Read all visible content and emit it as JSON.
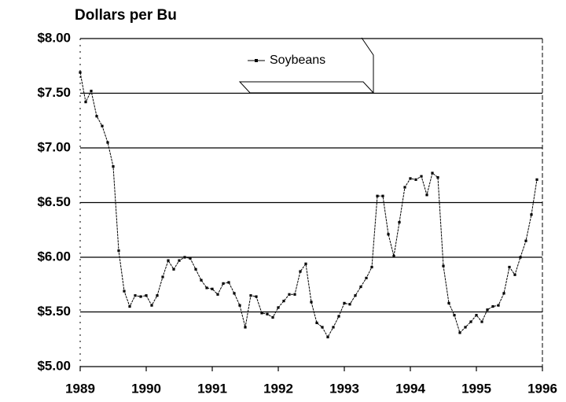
{
  "chart_data": {
    "type": "line",
    "title": "Dollars per Bu",
    "series": [
      {
        "name": "Soybeans",
        "color": "#000000",
        "values": [
          7.69,
          7.42,
          7.52,
          7.29,
          7.2,
          7.05,
          6.83,
          6.06,
          5.69,
          5.55,
          5.65,
          5.64,
          5.65,
          5.56,
          5.65,
          5.82,
          5.97,
          5.89,
          5.97,
          6.0,
          5.99,
          5.89,
          5.79,
          5.72,
          5.71,
          5.66,
          5.76,
          5.77,
          5.67,
          5.56,
          5.36,
          5.65,
          5.64,
          5.49,
          5.48,
          5.45,
          5.54,
          5.6,
          5.66,
          5.66,
          5.87,
          5.94,
          5.59,
          5.4,
          5.36,
          5.27,
          5.36,
          5.46,
          5.58,
          5.57,
          5.65,
          5.73,
          5.81,
          5.91,
          6.56,
          6.56,
          6.21,
          6.01,
          6.32,
          6.64,
          6.72,
          6.71,
          6.74,
          6.57,
          6.77,
          6.73,
          5.92,
          5.58,
          5.47,
          5.31,
          5.36,
          5.41,
          5.47,
          5.41,
          5.52,
          5.55,
          5.56,
          5.67,
          5.91,
          5.84,
          6.0,
          6.15,
          6.39,
          6.71
        ]
      }
    ],
    "xlim": [
      1989,
      1996
    ],
    "xticks": [
      1989,
      1990,
      1991,
      1992,
      1993,
      1994,
      1995,
      1996
    ],
    "ylim": [
      5,
      8
    ],
    "yticks": [
      {
        "value": 5,
        "label": "$5.00"
      },
      {
        "value": 5.5,
        "label": "$5.50"
      },
      {
        "value": 6,
        "label": "$6.00"
      },
      {
        "value": 6.5,
        "label": "$6.50"
      },
      {
        "value": 7,
        "label": "$7.00"
      },
      {
        "value": 7.5,
        "label": "$7.50"
      },
      {
        "value": 8,
        "label": "$8.00"
      }
    ],
    "grid": true,
    "legend": "top"
  }
}
